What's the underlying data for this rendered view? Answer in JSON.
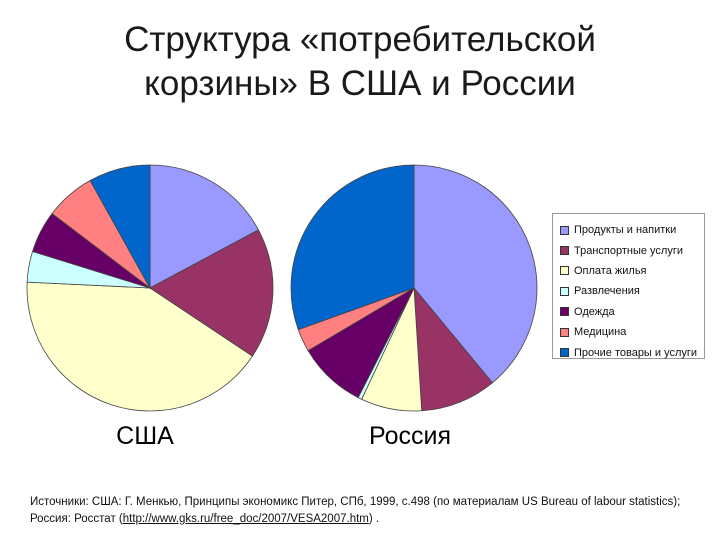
{
  "title_line1": "Структура «потребительской",
  "title_line2": "корзины» В США и России",
  "legend_items": [
    {
      "label": "Продукты и напитки",
      "color": "#9999ff"
    },
    {
      "label": "Транспортные услуги",
      "color": "#993366"
    },
    {
      "label": "Оплата жилья",
      "color": "#ffffcc"
    },
    {
      "label": "Развлечения",
      "color": "#ccffff"
    },
    {
      "label": "Одежда",
      "color": "#660066"
    },
    {
      "label": "Медицина",
      "color": "#ff8080"
    },
    {
      "label": "Прочие товары и услуги",
      "color": "#0066cc"
    }
  ],
  "chart_data": [
    {
      "type": "pie",
      "title": "США",
      "categories": [
        "Продукты и напитки",
        "Транспортные услуги",
        "Оплата жилья",
        "Развлечения",
        "Одежда",
        "Медицина",
        "Прочие товары и услуги"
      ],
      "values": [
        17,
        17,
        41,
        4,
        5.5,
        6.5,
        8
      ]
    },
    {
      "type": "pie",
      "title": "Россия",
      "categories": [
        "Продукты и напитки",
        "Транспортные услуги",
        "Оплата жилья",
        "Развлечения",
        "Одежда",
        "Медицина",
        "Прочие товары и услуги"
      ],
      "values": [
        39,
        10,
        8,
        0.5,
        9,
        3,
        30.5
      ]
    }
  ],
  "source": {
    "prefix": "Источники: США: Г. Менкью, Принципы экономикс Питер, СПб, 1999, с.498 (по материалам US Bureau of labour statistics); Россия: Росстат (",
    "link_text": "http://www.gks.ru/free_doc/2007/VESA2007.htm",
    "suffix": ") ."
  }
}
